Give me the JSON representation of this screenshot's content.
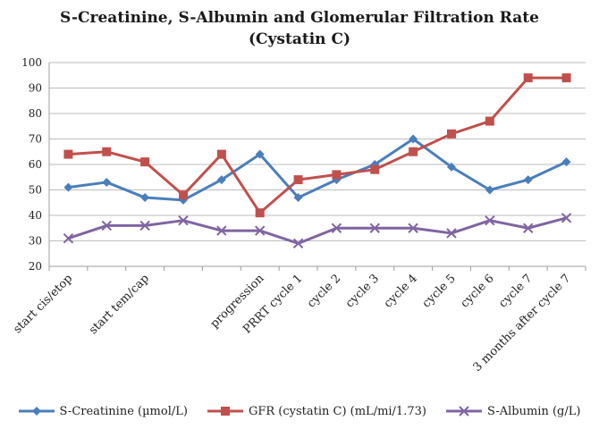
{
  "chart_data": {
    "type": "line",
    "title_line1": "S-Creatinine, S-Albumin and Glomerular Filtration Rate",
    "title_line2": "(Cystatin C)",
    "categories": [
      "start cis/etop",
      "",
      "start tem/cap",
      "",
      "",
      "progression",
      "PRRT cycle 1",
      "cycle 2",
      "cycle 3",
      "cycle 4",
      "cycle 5",
      "cycle 6",
      "cycle 7",
      "3 months after cycle 7"
    ],
    "ylim": [
      20,
      100
    ],
    "yticks": [
      20,
      30,
      40,
      50,
      60,
      70,
      80,
      90,
      100
    ],
    "grid": true,
    "legend_position": "bottom",
    "series": [
      {
        "name": "S-Creatinine (µmol/L)",
        "color": "#4a7ebb",
        "marker": "diamond",
        "values": [
          51,
          53,
          47,
          46,
          54,
          64,
          47,
          54,
          60,
          70,
          59,
          50,
          54,
          61
        ]
      },
      {
        "name": "GFR (cystatin C) (mL/mi/1.73)",
        "color": "#c0504d",
        "marker": "square",
        "values": [
          64,
          65,
          61,
          48,
          64,
          41,
          54,
          56,
          58,
          65,
          72,
          77,
          94,
          94
        ]
      },
      {
        "name": "S-Albumin (g/L)",
        "color": "#8064a2",
        "marker": "x",
        "values": [
          31,
          36,
          36,
          38,
          34,
          34,
          29,
          35,
          35,
          35,
          33,
          38,
          35,
          39
        ]
      }
    ]
  }
}
